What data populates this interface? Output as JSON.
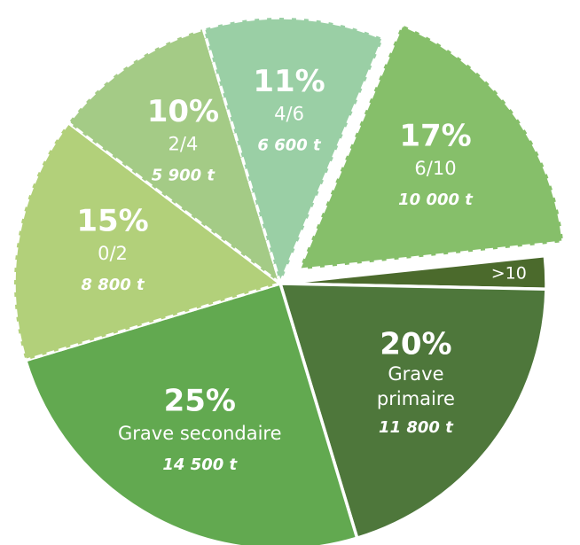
{
  "chart_data": {
    "type": "pie",
    "categories": [
      "6/10",
      ">10",
      "Grave primaire",
      "Grave secondaire",
      "0/2",
      "2/4",
      "4/6"
    ],
    "values": [
      17,
      2,
      20,
      25,
      15,
      10,
      11
    ],
    "value_labels": [
      "17%",
      null,
      "20%",
      "25%",
      "15%",
      "10%",
      "11%"
    ],
    "tonnages": [
      "10 000 t",
      null,
      "11 800 t",
      "14 500 t",
      "8 800 t",
      "5 900 t",
      "6 600 t"
    ],
    "colors": [
      "#86bf6a",
      "#4b6a2c",
      "#4e773b",
      "#62a950",
      "#b2d07a",
      "#a4cb86",
      "#9acfa5"
    ],
    "dashed": [
      true,
      false,
      false,
      false,
      true,
      true,
      true
    ],
    "explode": [
      true,
      false,
      false,
      false,
      false,
      false,
      false
    ]
  }
}
